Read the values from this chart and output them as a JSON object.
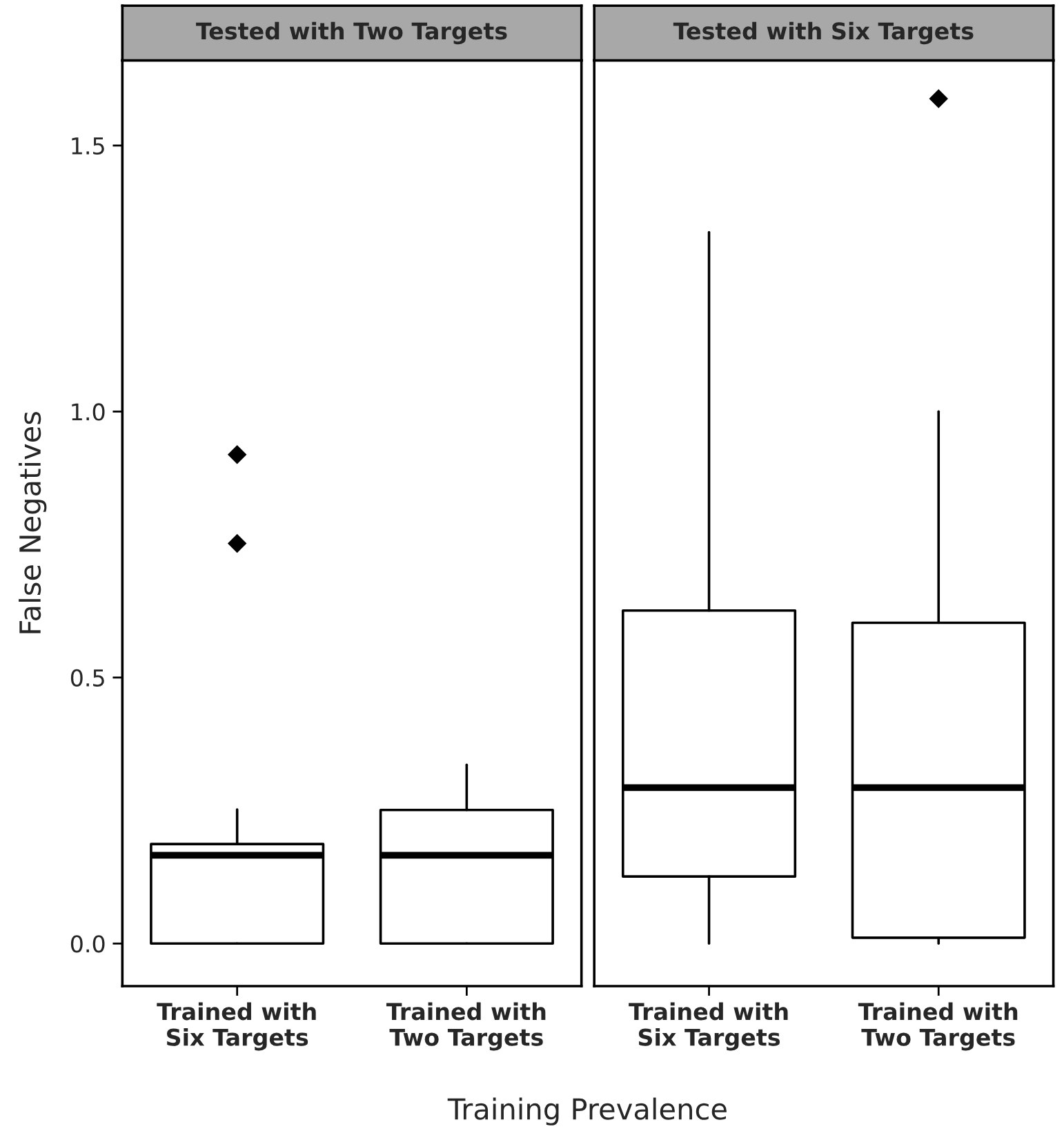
{
  "chart_data": [
    {
      "type": "box",
      "title": "Tested with Two Targets",
      "ylabel": "False Negatives",
      "xlabel": "Training Prevalence",
      "categories": [
        "Trained with\nSix Targets",
        "Trained with\nTwo Targets"
      ],
      "ylim": [
        -0.08,
        1.66
      ],
      "yticks": [
        {
          "value": 0.0,
          "label": "0.0"
        },
        {
          "value": 0.5,
          "label": "0.5"
        },
        {
          "value": 1.0,
          "label": "1.0"
        },
        {
          "value": 1.5,
          "label": "1.5"
        }
      ],
      "grid": false,
      "marker": "diamond",
      "boxes": [
        {
          "low": 0.0,
          "q1": 0.0,
          "median": 0.166,
          "q3": 0.187,
          "high": 0.252,
          "outliers": [
            0.919,
            0.752
          ]
        },
        {
          "low": 0.0,
          "q1": 0.0,
          "median": 0.166,
          "q3": 0.251,
          "high": 0.336
        }
      ]
    },
    {
      "type": "box",
      "title": "Tested with Six Targets",
      "categories": [
        "Trained with\nSix Targets",
        "Trained with\nTwo Targets"
      ],
      "ylim": [
        -0.08,
        1.66
      ],
      "tick_labels": "x",
      "grid": false,
      "marker": "diamond",
      "boxes": [
        {
          "low": 0.0,
          "q1": 0.126,
          "median": 0.293,
          "q3": 0.626,
          "high": 1.337
        },
        {
          "low": 0.0,
          "q1": 0.011,
          "median": 0.293,
          "q3": 0.603,
          "high": 1.0,
          "outliers": [
            1.588
          ]
        }
      ]
    }
  ]
}
